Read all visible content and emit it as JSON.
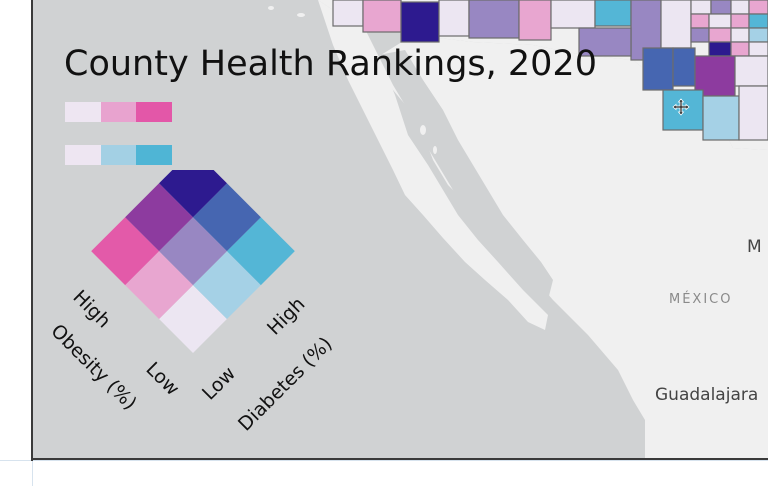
{
  "map": {
    "title": "County Health Rankings, 2020",
    "place_labels": {
      "mexico": "MÉXICO",
      "guadalajara": "Guadalajara",
      "partial_city": "M"
    },
    "colors": {
      "ocean": "#d0d2d3",
      "land": "#f0f0f0",
      "county_border": "#6c6c6c"
    }
  },
  "legend": {
    "obesity_ramp": [
      "#eee6f2",
      "#e8a3cf",
      "#e357a8"
    ],
    "diabetes_ramp": [
      "#eee6f2",
      "#a3d0e4",
      "#4fb5d5"
    ],
    "bivariate_grid": [
      [
        "#ece6f2",
        "#a5d1e6",
        "#54b6d6"
      ],
      [
        "#e8a6d0",
        "#9887c2",
        "#4666b1"
      ],
      [
        "#e35aa9",
        "#8d3b9f",
        "#2d1a8f"
      ]
    ],
    "obesity_axis_label": "Obesity (%)",
    "diabetes_axis_label": "Diabetes (%)",
    "obesity_high": "High",
    "obesity_low": "Low",
    "diabetes_high": "High",
    "diabetes_low": "Low"
  },
  "counties": [
    {
      "level": "low-low",
      "fill": "#ece6f2"
    },
    {
      "level": "mid-low",
      "fill": "#e8a6d0"
    },
    {
      "level": "high-high",
      "fill": "#2d1a8f"
    },
    {
      "level": "mid-mid",
      "fill": "#9887c2"
    },
    {
      "level": "low-mid",
      "fill": "#a5d1e6"
    },
    {
      "level": "low-high",
      "fill": "#54b6d6"
    },
    {
      "level": "mid-high",
      "fill": "#4666b1"
    },
    {
      "level": "high-mid",
      "fill": "#8d3b9f"
    },
    {
      "level": "high-low",
      "fill": "#e35aa9"
    }
  ]
}
